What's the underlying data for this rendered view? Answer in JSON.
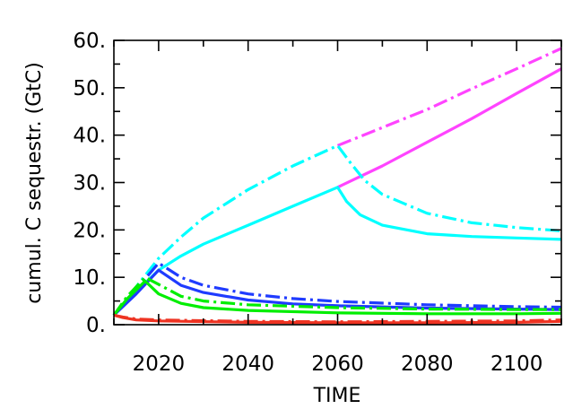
{
  "chart_data": {
    "type": "line",
    "title": "",
    "xlabel": "TIME",
    "ylabel": "cumul. C sequestr. (GtC)",
    "xlim": [
      2010,
      2110
    ],
    "ylim": [
      0,
      60
    ],
    "x_ticks": [
      2020,
      2040,
      2060,
      2080,
      2100
    ],
    "x_tick_labels": [
      "2020",
      "2040",
      "2060",
      "2080",
      "2100"
    ],
    "y_ticks": [
      0,
      10,
      20,
      30,
      40,
      50,
      60
    ],
    "y_tick_labels": [
      "0.",
      "10.",
      "20.",
      "30.",
      "40.",
      "50.",
      "60."
    ],
    "grid": false,
    "legend": "none",
    "series": [
      {
        "color": "#ff44ff",
        "style": "solid",
        "points": [
          [
            2060,
            29.0
          ],
          [
            2070,
            33.5
          ],
          [
            2080,
            38.5
          ],
          [
            2090,
            43.5
          ],
          [
            2100,
            48.8
          ],
          [
            2110,
            54.0
          ]
        ]
      },
      {
        "color": "#ff44ff",
        "style": "dashdot",
        "points": [
          [
            2060,
            37.8
          ],
          [
            2070,
            41.6
          ],
          [
            2080,
            45.4
          ],
          [
            2090,
            49.8
          ],
          [
            2100,
            54.0
          ],
          [
            2110,
            58.3
          ]
        ]
      },
      {
        "color": "#00ffff",
        "style": "solid",
        "points": [
          [
            2010,
            2.0
          ],
          [
            2015,
            7.0
          ],
          [
            2020,
            11.5
          ],
          [
            2025,
            14.5
          ],
          [
            2030,
            17.0
          ],
          [
            2040,
            21.0
          ],
          [
            2050,
            25.0
          ],
          [
            2060,
            29.0
          ],
          [
            2062,
            26.0
          ],
          [
            2065,
            23.2
          ],
          [
            2070,
            21.0
          ],
          [
            2080,
            19.2
          ],
          [
            2090,
            18.6
          ],
          [
            2100,
            18.3
          ],
          [
            2110,
            18.0
          ]
        ]
      },
      {
        "color": "#00ffff",
        "style": "dashdot",
        "points": [
          [
            2010,
            2.0
          ],
          [
            2015,
            8.0
          ],
          [
            2020,
            14.0
          ],
          [
            2025,
            18.5
          ],
          [
            2030,
            22.5
          ],
          [
            2040,
            28.5
          ],
          [
            2050,
            33.5
          ],
          [
            2060,
            37.8
          ],
          [
            2063,
            34.0
          ],
          [
            2066,
            30.5
          ],
          [
            2070,
            27.5
          ],
          [
            2080,
            23.5
          ],
          [
            2090,
            21.5
          ],
          [
            2100,
            20.5
          ],
          [
            2110,
            19.8
          ]
        ]
      },
      {
        "color": "#1f3bff",
        "style": "solid",
        "points": [
          [
            2010,
            2.0
          ],
          [
            2015,
            6.5
          ],
          [
            2020,
            11.5
          ],
          [
            2025,
            8.3
          ],
          [
            2030,
            6.8
          ],
          [
            2040,
            5.2
          ],
          [
            2050,
            4.4
          ],
          [
            2060,
            4.0
          ],
          [
            2080,
            3.5
          ],
          [
            2100,
            3.3
          ],
          [
            2110,
            3.2
          ]
        ]
      },
      {
        "color": "#1f3bff",
        "style": "dashdot",
        "points": [
          [
            2010,
            2.0
          ],
          [
            2015,
            7.5
          ],
          [
            2020,
            13.0
          ],
          [
            2025,
            10.0
          ],
          [
            2030,
            8.3
          ],
          [
            2040,
            6.5
          ],
          [
            2050,
            5.5
          ],
          [
            2060,
            4.9
          ],
          [
            2080,
            4.2
          ],
          [
            2100,
            3.8
          ],
          [
            2110,
            3.7
          ]
        ]
      },
      {
        "color": "#00ee00",
        "style": "solid",
        "points": [
          [
            2010,
            2.0
          ],
          [
            2013,
            5.5
          ],
          [
            2017,
            9.2
          ],
          [
            2020,
            6.5
          ],
          [
            2025,
            4.5
          ],
          [
            2030,
            3.6
          ],
          [
            2040,
            3.0
          ],
          [
            2060,
            2.5
          ],
          [
            2080,
            2.3
          ],
          [
            2100,
            2.3
          ],
          [
            2110,
            2.4
          ]
        ]
      },
      {
        "color": "#00ee00",
        "style": "dashdot",
        "points": [
          [
            2010,
            2.0
          ],
          [
            2013,
            6.0
          ],
          [
            2017,
            10.0
          ],
          [
            2020,
            8.5
          ],
          [
            2025,
            6.0
          ],
          [
            2030,
            5.0
          ],
          [
            2040,
            4.2
          ],
          [
            2060,
            3.6
          ],
          [
            2080,
            3.3
          ],
          [
            2100,
            3.2
          ],
          [
            2110,
            3.2
          ]
        ]
      },
      {
        "color": "#ee3322",
        "style": "solid",
        "points": [
          [
            2010,
            2.0
          ],
          [
            2012,
            1.5
          ],
          [
            2015,
            1.0
          ],
          [
            2020,
            0.8
          ],
          [
            2040,
            0.5
          ],
          [
            2060,
            0.4
          ],
          [
            2080,
            0.4
          ],
          [
            2100,
            0.5
          ],
          [
            2110,
            0.7
          ]
        ]
      },
      {
        "color": "#ee3322",
        "style": "dashdot",
        "points": [
          [
            2010,
            2.0
          ],
          [
            2012,
            1.6
          ],
          [
            2015,
            1.2
          ],
          [
            2020,
            1.0
          ],
          [
            2040,
            0.7
          ],
          [
            2060,
            0.6
          ],
          [
            2080,
            0.7
          ],
          [
            2100,
            0.8
          ],
          [
            2110,
            1.0
          ]
        ]
      }
    ]
  }
}
